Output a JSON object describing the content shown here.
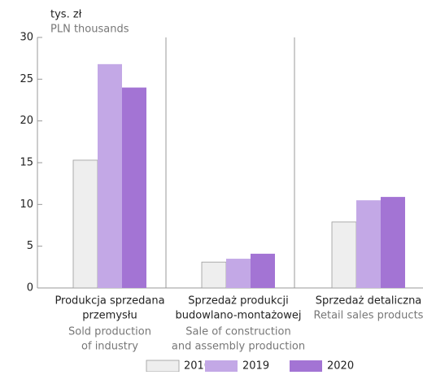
{
  "chart_data": {
    "type": "bar",
    "y_label": "tys. zł",
    "y_label_en": "PLN thousands",
    "categories": [
      [
        "Produkcja sprzedana",
        "przemysłu"
      ],
      [
        "Sprzedaż produkcji",
        "budowlano-montażowej"
      ],
      [
        "Sprzedaż detaliczna"
      ]
    ],
    "categories_en": [
      [
        "Sold production",
        "of industry"
      ],
      [
        "Sale of construction",
        "and assembly production"
      ],
      [
        "Retail sales products"
      ]
    ],
    "series": [
      {
        "name": "2010",
        "color": "#eeeeee",
        "values": [
          15.3,
          3.1,
          7.9
        ]
      },
      {
        "name": "2019",
        "color": "#c3a8e6",
        "values": [
          26.8,
          3.5,
          10.5
        ]
      },
      {
        "name": "2020",
        "color": "#a374d4",
        "values": [
          24.0,
          4.1,
          10.9
        ]
      }
    ],
    "ylim": [
      0,
      30
    ],
    "yticks": [
      0,
      5,
      10,
      15,
      20,
      25,
      30
    ],
    "legend": "bottom"
  }
}
